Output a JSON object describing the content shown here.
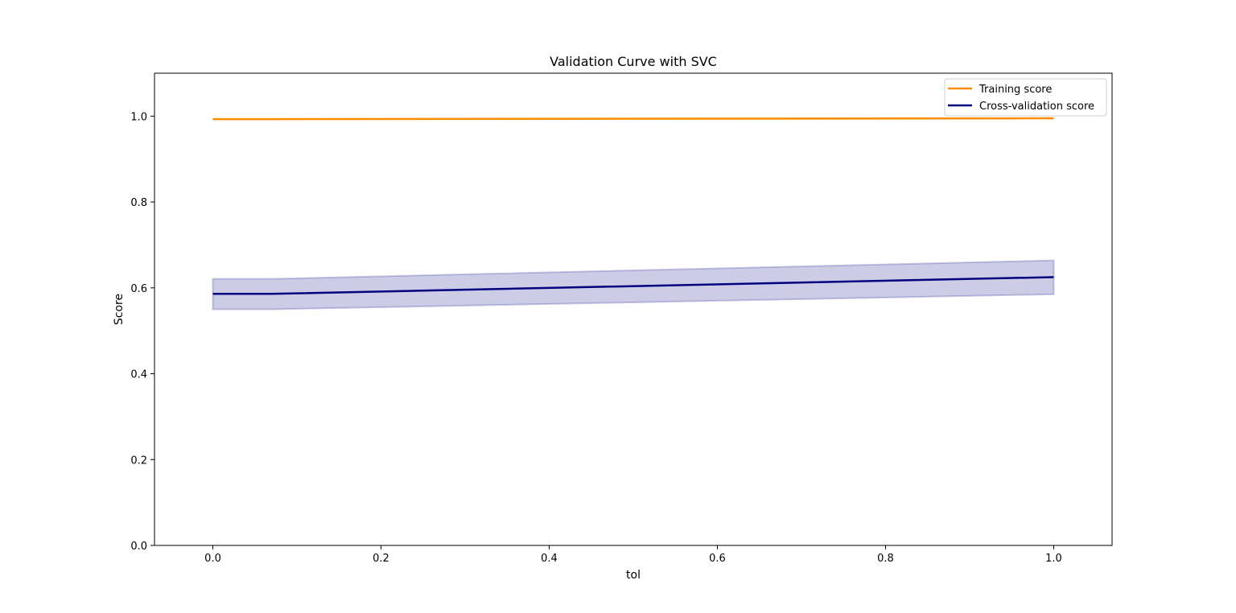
{
  "chart_data": {
    "type": "line",
    "title": "Validation Curve with SVC",
    "xlabel": "tol",
    "ylabel": "Score",
    "xlim": [
      -0.0694,
      1.0694
    ],
    "ylim": [
      0.0,
      1.1
    ],
    "xticks": [
      0.0,
      0.2,
      0.4,
      0.6,
      0.8,
      1.0
    ],
    "xtick_labels": [
      "0.0",
      "0.2",
      "0.4",
      "0.6",
      "0.8",
      "1.0"
    ],
    "yticks": [
      0.0,
      0.2,
      0.4,
      0.6,
      0.8,
      1.0
    ],
    "ytick_labels": [
      "0.0",
      "0.2",
      "0.4",
      "0.6",
      "0.8",
      "1.0"
    ],
    "grid": false,
    "legend_position": "top-right",
    "series": [
      {
        "name": "Training score",
        "color": "#ff8c00",
        "x": [
          0.0,
          0.07,
          1.0
        ],
        "y": [
          0.993,
          0.993,
          0.995
        ]
      },
      {
        "name": "Cross-validation score",
        "color": "#000080",
        "x": [
          0.0,
          0.07,
          1.0
        ],
        "y": [
          0.586,
          0.586,
          0.625
        ],
        "band_lower": [
          0.55,
          0.55,
          0.585
        ],
        "band_upper": [
          0.621,
          0.621,
          0.664
        ],
        "band_color": "#000080"
      }
    ]
  }
}
